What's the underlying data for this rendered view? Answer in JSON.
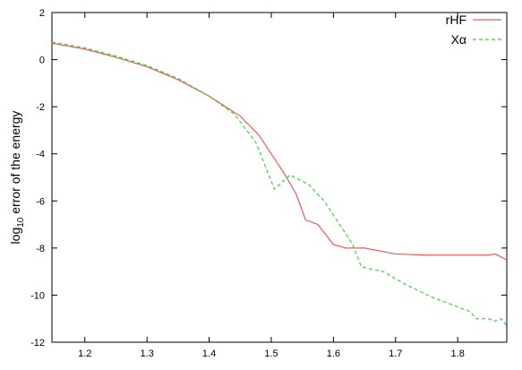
{
  "chart_data": {
    "type": "line",
    "ylabel": {
      "base": "log",
      "subscript": "10",
      "rest": " error of the energy"
    },
    "xlim": [
      1.147,
      1.879
    ],
    "xticks": [
      1.2,
      1.3,
      1.4,
      1.5,
      1.6,
      1.7,
      1.8
    ],
    "ylim": [
      -12,
      2
    ],
    "yticks": [
      -12,
      -10,
      -8,
      -6,
      -4,
      -2,
      0,
      2
    ],
    "legend": "top-right",
    "series": [
      {
        "name": "rHF",
        "color": "#ee5a5a",
        "dashed": false,
        "x": [
          1.147,
          1.2,
          1.25,
          1.3,
          1.35,
          1.4,
          1.45,
          1.48,
          1.5,
          1.52,
          1.54,
          1.555,
          1.575,
          1.6,
          1.62,
          1.65,
          1.7,
          1.75,
          1.8,
          1.85,
          1.86,
          1.879
        ],
        "values": [
          0.7,
          0.45,
          0.1,
          -0.3,
          -0.85,
          -1.55,
          -2.4,
          -3.2,
          -4.0,
          -4.8,
          -5.7,
          -6.8,
          -7.0,
          -7.85,
          -8.0,
          -8.0,
          -8.25,
          -8.3,
          -8.3,
          -8.3,
          -8.25,
          -8.5
        ]
      },
      {
        "name": "Xα",
        "color": "#3fcf3f",
        "dashed": true,
        "x": [
          1.147,
          1.2,
          1.25,
          1.3,
          1.35,
          1.4,
          1.44,
          1.475,
          1.49,
          1.505,
          1.53,
          1.56,
          1.585,
          1.61,
          1.63,
          1.645,
          1.68,
          1.72,
          1.76,
          1.8,
          1.82,
          1.83,
          1.85,
          1.86,
          1.87,
          1.879
        ],
        "values": [
          0.75,
          0.5,
          0.15,
          -0.25,
          -0.8,
          -1.55,
          -2.3,
          -3.5,
          -4.5,
          -5.5,
          -4.9,
          -5.3,
          -6.0,
          -7.0,
          -7.8,
          -8.8,
          -9.0,
          -9.6,
          -10.1,
          -10.5,
          -10.7,
          -11.0,
          -11.0,
          -11.1,
          -11.0,
          -11.3
        ]
      }
    ]
  }
}
